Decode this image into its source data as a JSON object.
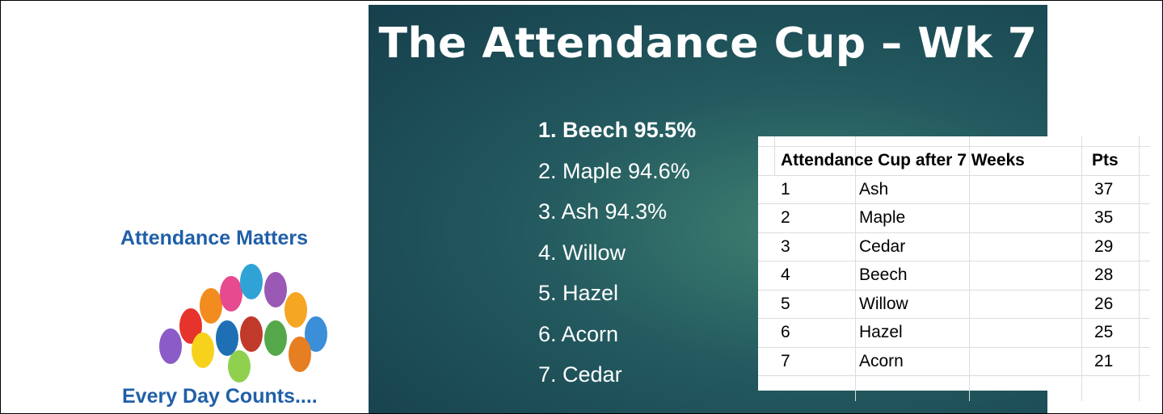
{
  "logo": {
    "top_text": "Attendance Matters",
    "bottom_text": "Every Day Counts...."
  },
  "slide": {
    "title": "The Attendance Cup – Wk 7",
    "weekly_ranking": [
      "1. Beech 95.5%",
      "2. Maple 94.6%",
      "3. Ash 94.3%",
      "4. Willow",
      "5. Hazel",
      "6. Acorn",
      "7. Cedar"
    ]
  },
  "table": {
    "header": [
      "Attendance Cup after 7 Weeks",
      "Pts"
    ],
    "rows": [
      [
        1,
        "Ash",
        37
      ],
      [
        2,
        "Maple",
        35
      ],
      [
        3,
        "Cedar",
        29
      ],
      [
        4,
        "Beech",
        28
      ],
      [
        5,
        "Willow",
        26
      ],
      [
        6,
        "Hazel",
        25
      ],
      [
        7,
        "Acorn",
        21
      ]
    ]
  }
}
